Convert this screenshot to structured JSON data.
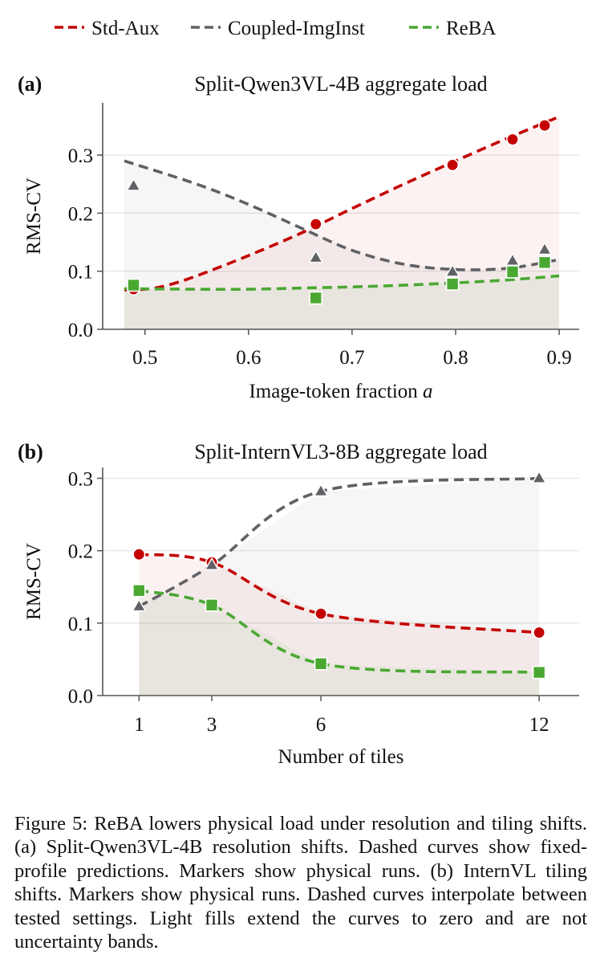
{
  "legend": [
    {
      "label": "Std-Aux",
      "color": "#c40000"
    },
    {
      "label": "Coupled-ImgInst",
      "color": "#5f6165"
    },
    {
      "label": "ReBA",
      "color": "#4aa832"
    }
  ],
  "chart_data": [
    {
      "type": "line",
      "panel": "(a)",
      "title": "Split-Qwen3VL-4B aggregate load",
      "xlabel": "Image-token fraction a",
      "ylabel": "RMS-CV",
      "xlim": [
        0.47,
        0.91
      ],
      "ylim": [
        0.0,
        0.39
      ],
      "xticks": [
        0.5,
        0.6,
        0.7,
        0.8,
        0.9
      ],
      "xtick_labels": [
        "0.5",
        "0.6",
        "0.7",
        "0.8",
        "0.9"
      ],
      "yticks": [
        0.0,
        0.1,
        0.2,
        0.3
      ],
      "ytick_labels": [
        "0.0",
        "0.1",
        "0.2",
        "0.3"
      ],
      "grid": "horizontal",
      "curves_note": "dashed fixed-profile predictions",
      "series": [
        {
          "name": "Std-Aux",
          "color": "#c40000",
          "marker": "circle",
          "curve": {
            "x": [
              0.48,
              0.5,
              0.52,
              0.55,
              0.6,
              0.65,
              0.7,
              0.75,
              0.8,
              0.85,
              0.9
            ],
            "y": [
              0.068,
              0.069,
              0.075,
              0.092,
              0.127,
              0.165,
              0.208,
              0.25,
              0.29,
              0.329,
              0.366
            ]
          },
          "points": {
            "x": [
              0.489,
              0.665,
              0.797,
              0.855,
              0.886
            ],
            "y": [
              0.069,
              0.181,
              0.283,
              0.327,
              0.351
            ]
          }
        },
        {
          "name": "Coupled-ImgInst",
          "color": "#5f6165",
          "marker": "triangle",
          "curve": {
            "x": [
              0.48,
              0.55,
              0.6,
              0.65,
              0.7,
              0.75,
              0.8,
              0.85,
              0.9
            ],
            "y": [
              0.29,
              0.25,
              0.215,
              0.175,
              0.136,
              0.112,
              0.103,
              0.105,
              0.12
            ]
          },
          "points": {
            "x": [
              0.489,
              0.665,
              0.797,
              0.855,
              0.886
            ],
            "y": [
              0.247,
              0.123,
              0.099,
              0.118,
              0.137
            ]
          }
        },
        {
          "name": "ReBA",
          "color": "#4aa832",
          "marker": "square",
          "curve": {
            "x": [
              0.48,
              0.55,
              0.6,
              0.65,
              0.7,
              0.75,
              0.8,
              0.85,
              0.9
            ],
            "y": [
              0.07,
              0.069,
              0.069,
              0.071,
              0.073,
              0.076,
              0.08,
              0.085,
              0.092
            ]
          },
          "points": {
            "x": [
              0.489,
              0.665,
              0.797,
              0.855,
              0.886
            ],
            "y": [
              0.076,
              0.054,
              0.078,
              0.099,
              0.115
            ]
          }
        }
      ]
    },
    {
      "type": "line",
      "panel": "(b)",
      "title": "Split-InternVL3-8B aggregate load",
      "xlabel": "Number of tiles",
      "ylabel": "RMS-CV",
      "xlim": [
        0.0,
        13.1
      ],
      "ylim": [
        0.0,
        0.315
      ],
      "xticks": [
        1,
        3,
        6,
        12
      ],
      "xtick_labels": [
        "1",
        "3",
        "6",
        "12"
      ],
      "yticks": [
        0.0,
        0.1,
        0.2,
        0.3
      ],
      "ytick_labels": [
        "0.0",
        "0.1",
        "0.2",
        "0.3"
      ],
      "grid": "horizontal",
      "curves_note": "dashed curves interpolate between tested settings",
      "series": [
        {
          "name": "Std-Aux",
          "color": "#c40000",
          "marker": "circle",
          "curve": {
            "x": [
              1,
              3,
              6,
              12
            ],
            "y": [
              0.195,
              0.184,
              0.113,
              0.087
            ]
          },
          "points": {
            "x": [
              1,
              3,
              6,
              12
            ],
            "y": [
              0.195,
              0.184,
              0.113,
              0.087
            ]
          }
        },
        {
          "name": "Coupled-ImgInst",
          "color": "#5f6165",
          "marker": "triangle",
          "curve": {
            "x": [
              1,
              3,
              6,
              12
            ],
            "y": [
              0.123,
              0.18,
              0.282,
              0.3
            ]
          },
          "points": {
            "x": [
              1,
              3,
              6,
              12
            ],
            "y": [
              0.123,
              0.18,
              0.282,
              0.3
            ]
          }
        },
        {
          "name": "ReBA",
          "color": "#4aa832",
          "marker": "square",
          "curve": {
            "x": [
              1,
              3,
              6,
              12
            ],
            "y": [
              0.145,
              0.125,
              0.044,
              0.032
            ]
          },
          "points": {
            "x": [
              1,
              3,
              6,
              12
            ],
            "y": [
              0.145,
              0.125,
              0.044,
              0.032
            ]
          }
        }
      ]
    }
  ],
  "caption": "Figure 5: ReBA lowers physical load under resolution and tiling shifts. (a) Split-Qwen3VL-4B resolution shifts. Dashed curves show fixed-profile predictions. Markers show physical runs. (b) InternVL tiling shifts. Markers show physical runs. Dashed curves interpolate between tested settings. Light fills extend the curves to zero and are not uncertainty bands."
}
